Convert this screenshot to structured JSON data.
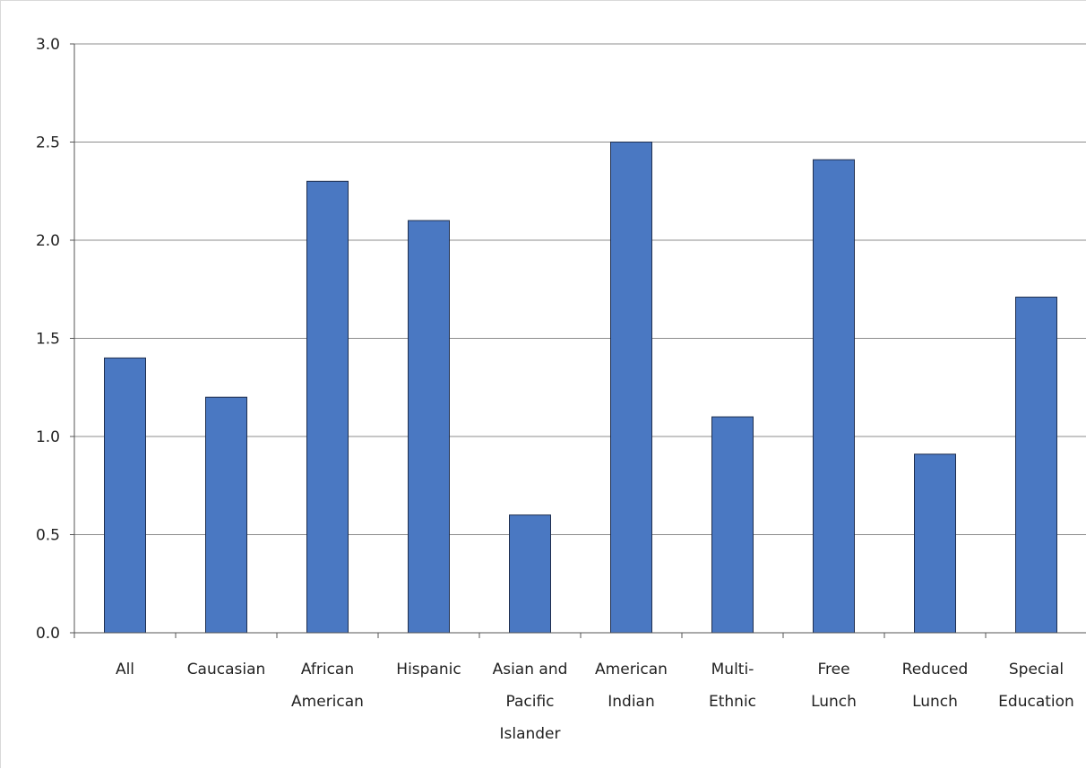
{
  "chart_data": {
    "type": "bar",
    "title": "",
    "xlabel": "",
    "ylabel": "",
    "categories": [
      [
        "All"
      ],
      [
        "Caucasian"
      ],
      [
        "African",
        "American"
      ],
      [
        "Hispanic"
      ],
      [
        "Asian and",
        "Pacific",
        "Islander"
      ],
      [
        "American",
        "Indian"
      ],
      [
        "Multi-",
        "Ethnic"
      ],
      [
        "Free",
        "Lunch"
      ],
      [
        "Reduced",
        "Lunch"
      ],
      [
        "Special",
        "Education"
      ]
    ],
    "values": [
      1.4,
      1.2,
      2.3,
      2.1,
      0.6,
      2.5,
      1.1,
      2.41,
      0.91,
      1.71
    ],
    "ylim": [
      0,
      3
    ],
    "yticks": [
      0,
      0.5,
      1,
      1.5,
      2,
      2.5,
      3
    ],
    "ytick_labels": [
      "0.0",
      "0.5",
      "1.0",
      "1.5",
      "2.0",
      "2.5",
      "3.0"
    ],
    "grid": true,
    "legend": "none",
    "colors": {
      "bar_fill": "#4a78c2",
      "bar_stroke": "#1f2f4f",
      "gridline": "#8c8c8c",
      "axis": "#555555",
      "text": "#222222"
    }
  }
}
